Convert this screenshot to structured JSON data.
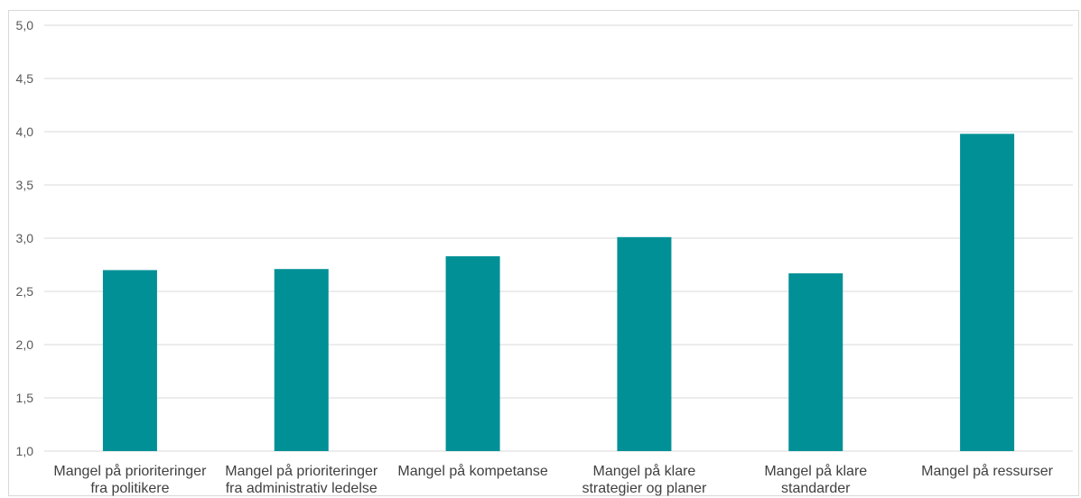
{
  "chart_data": {
    "type": "bar",
    "title": "",
    "xlabel": "",
    "ylabel": "",
    "ylim": [
      1.0,
      5.0
    ],
    "yticks": [
      "1,0",
      "1,5",
      "2,0",
      "2,5",
      "3,0",
      "3,5",
      "4,0",
      "4,5",
      "5,0"
    ],
    "ytick_values": [
      1.0,
      1.5,
      2.0,
      2.5,
      3.0,
      3.5,
      4.0,
      4.5,
      5.0
    ],
    "grid": true,
    "bar_color": "#009096",
    "grid_color": "#d9d9d9",
    "categories": [
      [
        "Mangel på prioriteringer",
        "fra politikere"
      ],
      [
        "Mangel på prioriteringer",
        "fra administrativ ledelse"
      ],
      [
        "Mangel på kompetanse"
      ],
      [
        "Mangel på klare",
        "strategier og planer"
      ],
      [
        "Mangel på klare",
        "standarder"
      ],
      [
        "Mangel på ressurser"
      ]
    ],
    "values": [
      2.7,
      2.71,
      2.83,
      3.01,
      2.67,
      3.98
    ]
  }
}
